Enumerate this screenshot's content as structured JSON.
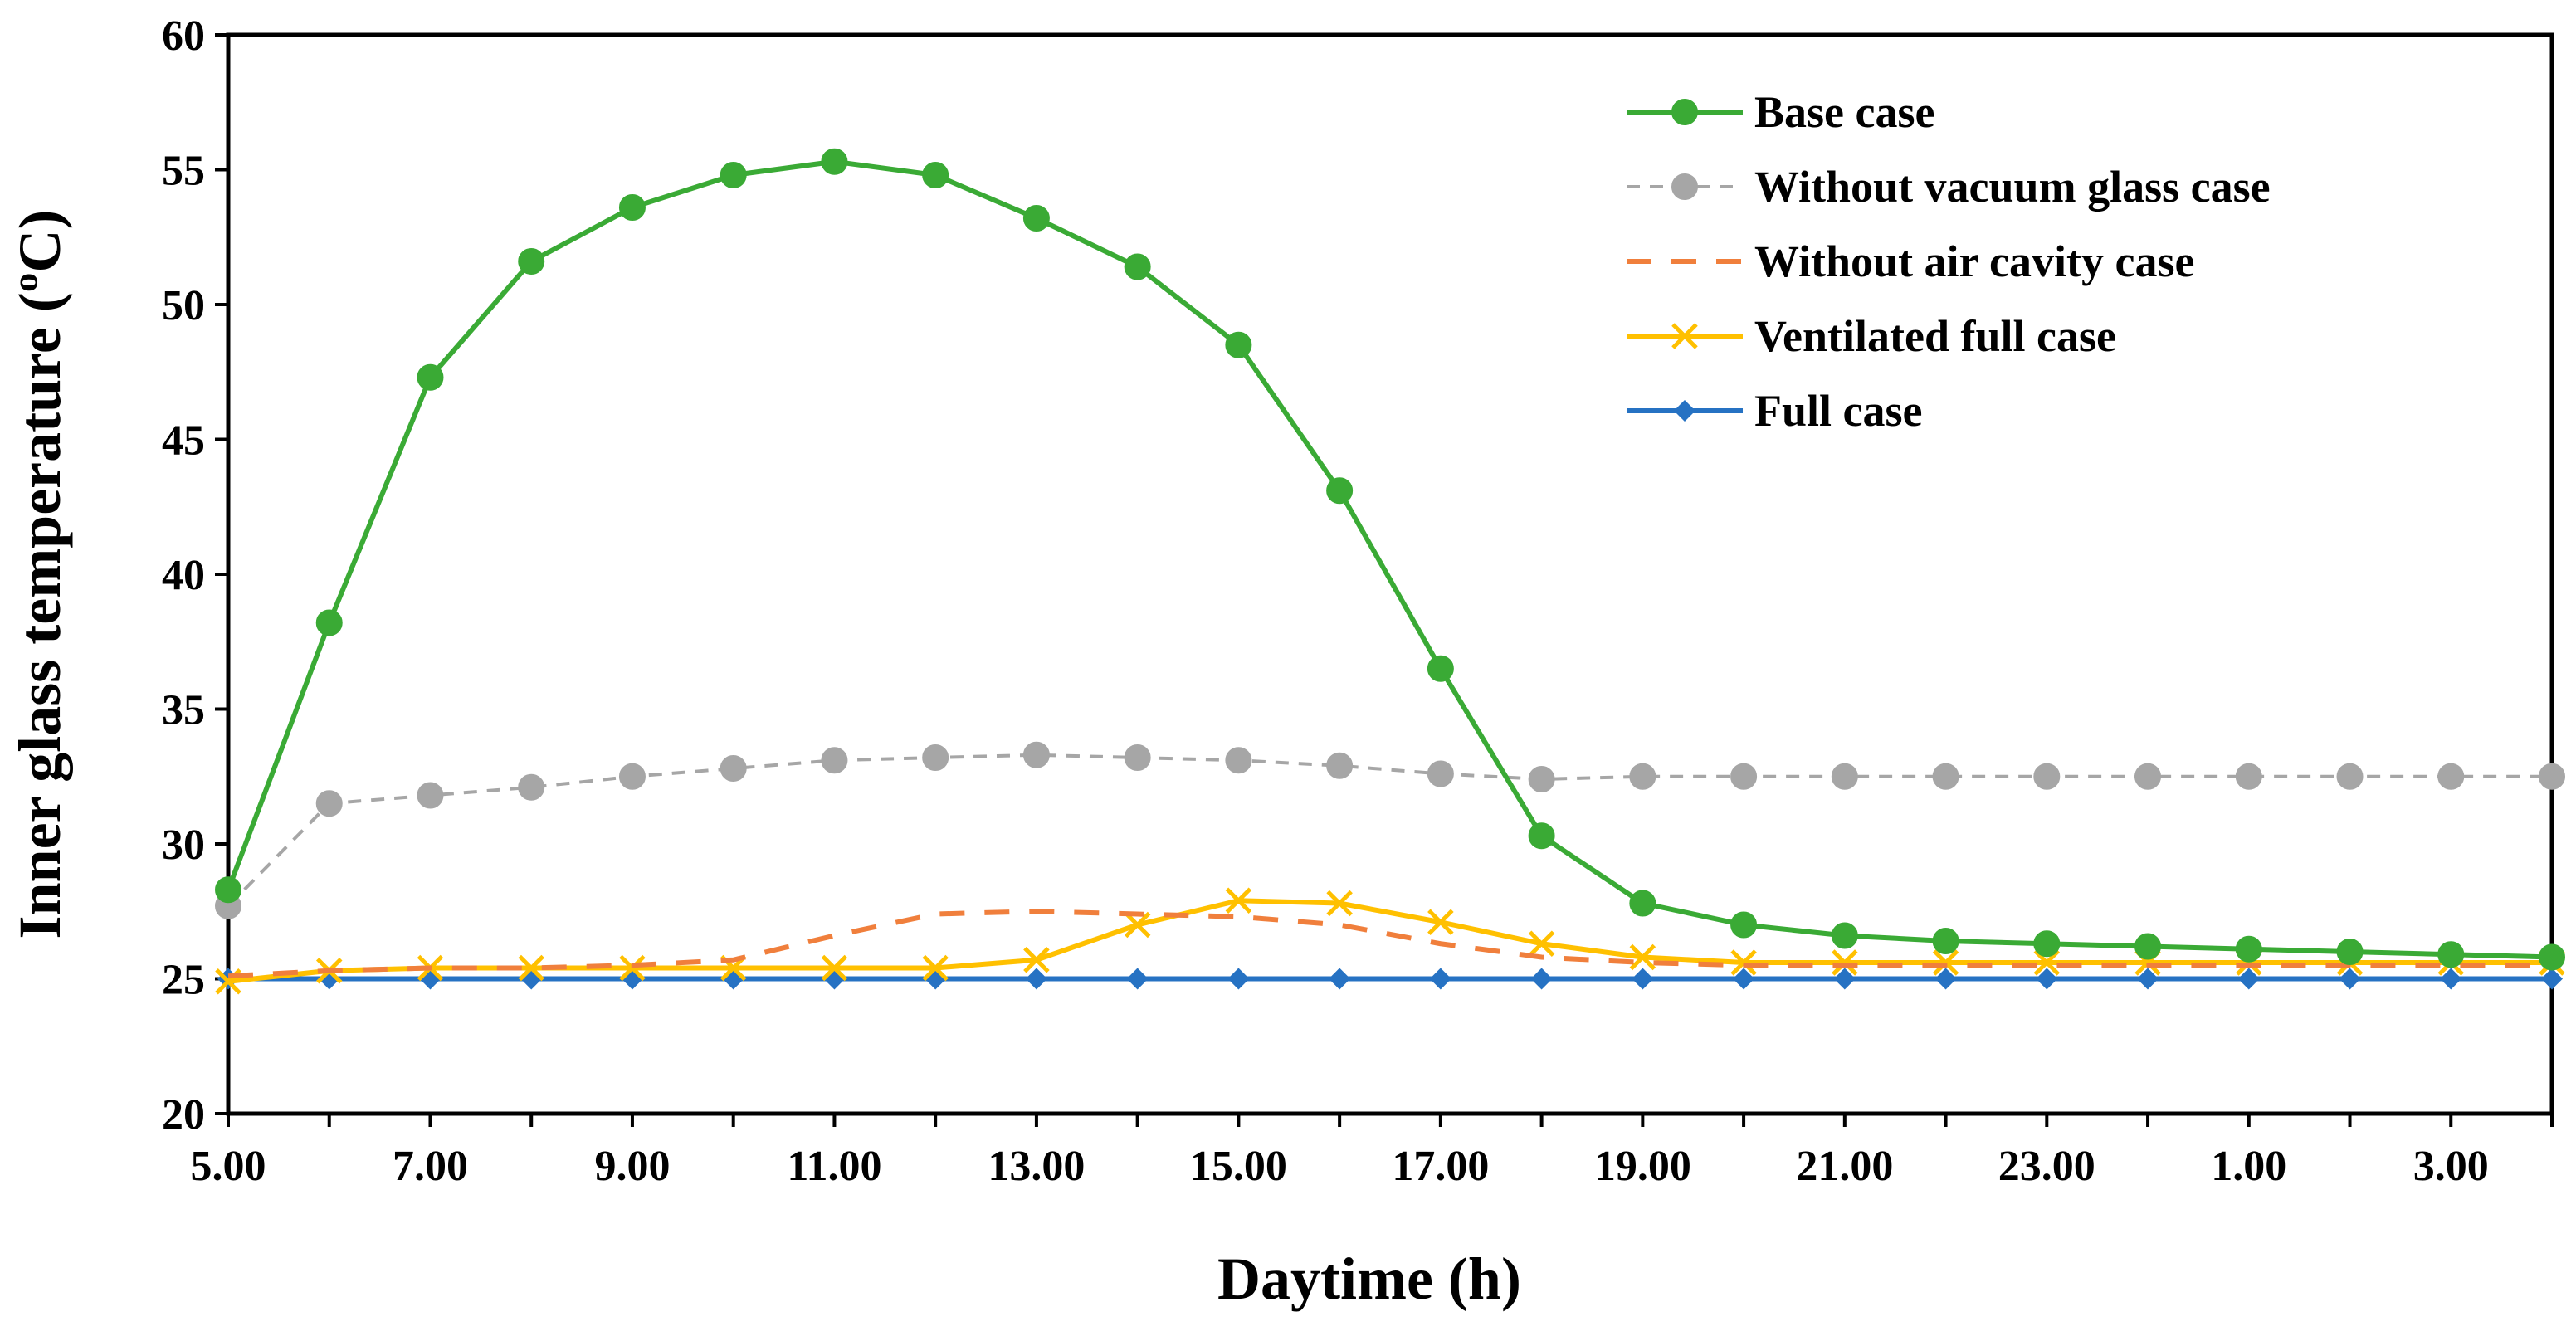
{
  "chart_data": {
    "type": "line",
    "xlabel": "Daytime (h)",
    "ylabel": "Inner glass temperature  (ºC)",
    "ylim": [
      20,
      60
    ],
    "yticks": [
      "20",
      "25",
      "30",
      "35",
      "40",
      "45",
      "50",
      "55",
      "60"
    ],
    "x": [
      "5.00",
      "6.00",
      "7.00",
      "8.00",
      "9.00",
      "10.00",
      "11.00",
      "12.00",
      "13.00",
      "14.00",
      "15.00",
      "16.00",
      "17.00",
      "18.00",
      "19.00",
      "20.00",
      "21.00",
      "22.00",
      "23.00",
      "24.00",
      "1.00",
      "2.00",
      "3.00",
      "4.00"
    ],
    "xtick_labels": [
      "5.00",
      "7.00",
      "9.00",
      "11.00",
      "13.00",
      "15.00",
      "17.00",
      "19.00",
      "21.00",
      "23.00",
      "1.00",
      "3.00"
    ],
    "legend_position": "top-right",
    "grid": false,
    "series": [
      {
        "name": "Base case",
        "color": "#3aaa35",
        "marker": "circle",
        "dash": "solid",
        "values": [
          28.3,
          38.2,
          47.3,
          51.6,
          53.6,
          54.8,
          55.3,
          54.8,
          53.2,
          51.4,
          48.5,
          43.1,
          36.5,
          30.3,
          27.8,
          27.0,
          26.6,
          26.4,
          26.3,
          26.2,
          26.1,
          26.0,
          25.9,
          25.8
        ]
      },
      {
        "name": "Without vacuum glass case",
        "color": "#a6a6a6",
        "marker": "circle",
        "dash": "dashed",
        "values": [
          27.7,
          31.5,
          31.8,
          32.1,
          32.5,
          32.8,
          33.1,
          33.2,
          33.3,
          33.2,
          33.1,
          32.9,
          32.6,
          32.4,
          32.5,
          32.5,
          32.5,
          32.5,
          32.5,
          32.5,
          32.5,
          32.5,
          32.5,
          32.5
        ]
      },
      {
        "name": "Without air cavity case",
        "color": "#f07f3c",
        "marker": "none",
        "dash": "longdash",
        "values": [
          25.1,
          25.3,
          25.4,
          25.4,
          25.5,
          25.7,
          26.6,
          27.4,
          27.5,
          27.4,
          27.3,
          27.0,
          26.3,
          25.8,
          25.6,
          25.5,
          25.5,
          25.5,
          25.5,
          25.5,
          25.5,
          25.5,
          25.5,
          25.5
        ]
      },
      {
        "name": "Ventilated full case",
        "color": "#ffc000",
        "marker": "x",
        "dash": "solid",
        "values": [
          24.9,
          25.3,
          25.4,
          25.4,
          25.4,
          25.4,
          25.4,
          25.4,
          25.7,
          27.0,
          27.9,
          27.8,
          27.1,
          26.3,
          25.8,
          25.6,
          25.6,
          25.6,
          25.6,
          25.6,
          25.6,
          25.6,
          25.6,
          25.6
        ]
      },
      {
        "name": "Full case",
        "color": "#2672c3",
        "marker": "diamond",
        "dash": "solid",
        "values": [
          25.0,
          25.0,
          25.0,
          25.0,
          25.0,
          25.0,
          25.0,
          25.0,
          25.0,
          25.0,
          25.0,
          25.0,
          25.0,
          25.0,
          25.0,
          25.0,
          25.0,
          25.0,
          25.0,
          25.0,
          25.0,
          25.0,
          25.0,
          25.0
        ]
      }
    ]
  }
}
